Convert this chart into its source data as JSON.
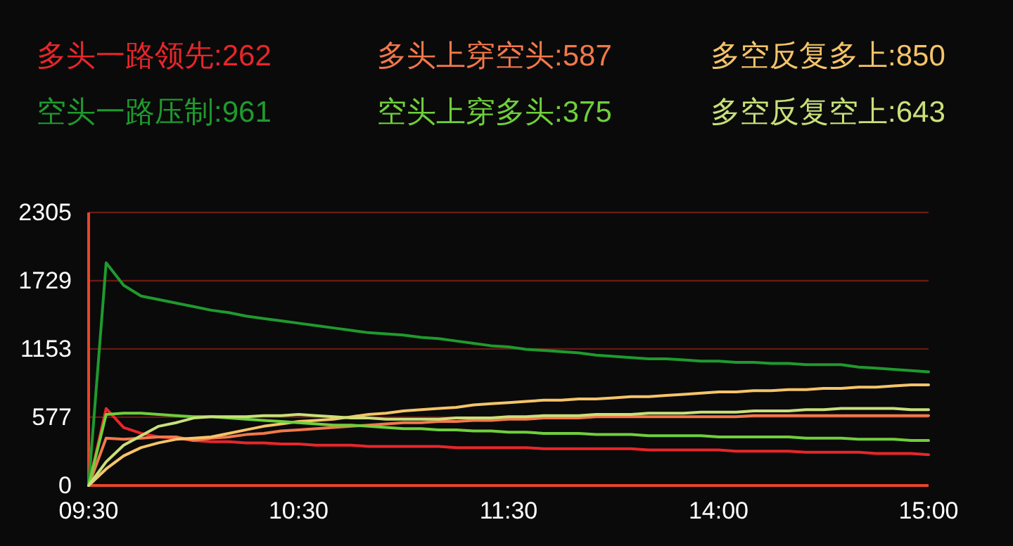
{
  "chart_data": {
    "type": "line",
    "legend": "top",
    "grid": "y",
    "ylim": [
      0,
      2305
    ],
    "yticks": [
      0,
      577,
      1153,
      1729,
      2305
    ],
    "categories": [
      "09:30",
      null,
      null,
      null,
      null,
      null,
      null,
      null,
      null,
      null,
      null,
      null,
      "10:30",
      null,
      null,
      null,
      null,
      null,
      null,
      null,
      null,
      null,
      null,
      null,
      "11:30",
      null,
      null,
      null,
      null,
      null,
      null,
      null,
      null,
      null,
      null,
      null,
      "14:00",
      null,
      null,
      null,
      null,
      null,
      null,
      null,
      null,
      null,
      null,
      null,
      "15:00"
    ],
    "series": [
      {
        "name": "多头一路领先:262",
        "color": "#e8262a",
        "values": [
          0,
          650,
          490,
          440,
          410,
          400,
          380,
          370,
          370,
          360,
          360,
          350,
          350,
          340,
          340,
          340,
          330,
          330,
          330,
          330,
          330,
          320,
          320,
          320,
          320,
          320,
          310,
          310,
          310,
          310,
          310,
          310,
          300,
          300,
          300,
          300,
          300,
          290,
          290,
          290,
          290,
          280,
          280,
          280,
          280,
          270,
          270,
          270,
          260
        ]
      },
      {
        "name": "多头上穿空头:587",
        "color": "#f2784b",
        "values": [
          0,
          400,
          390,
          400,
          410,
          410,
          380,
          400,
          410,
          430,
          440,
          460,
          470,
          480,
          490,
          500,
          510,
          520,
          530,
          530,
          540,
          540,
          550,
          550,
          560,
          560,
          570,
          570,
          570,
          580,
          580,
          580,
          580,
          580,
          580,
          580,
          580,
          580,
          590,
          590,
          590,
          590,
          590,
          590,
          590,
          590,
          590,
          590,
          590
        ]
      },
      {
        "name": "多空反复多上:850",
        "color": "#f5c46a",
        "values": [
          0,
          140,
          250,
          320,
          360,
          390,
          400,
          410,
          440,
          470,
          500,
          520,
          540,
          550,
          560,
          580,
          600,
          610,
          630,
          640,
          650,
          660,
          680,
          690,
          700,
          710,
          720,
          720,
          730,
          730,
          740,
          750,
          750,
          760,
          770,
          780,
          790,
          790,
          800,
          800,
          810,
          810,
          820,
          820,
          830,
          830,
          840,
          850,
          850
        ]
      },
      {
        "name": "空头一路压制:961",
        "color": "#1f9a2e",
        "values": [
          0,
          1880,
          1690,
          1600,
          1570,
          1540,
          1510,
          1480,
          1460,
          1430,
          1410,
          1390,
          1370,
          1350,
          1330,
          1310,
          1290,
          1280,
          1270,
          1250,
          1240,
          1220,
          1200,
          1180,
          1170,
          1150,
          1140,
          1130,
          1120,
          1100,
          1090,
          1080,
          1070,
          1070,
          1060,
          1050,
          1050,
          1040,
          1040,
          1030,
          1030,
          1020,
          1020,
          1020,
          1000,
          990,
          980,
          970,
          960
        ]
      },
      {
        "name": "空头上穿多头:375",
        "color": "#6fcf3c",
        "values": [
          0,
          600,
          610,
          610,
          600,
          590,
          580,
          580,
          570,
          560,
          550,
          540,
          530,
          520,
          510,
          510,
          500,
          490,
          480,
          480,
          470,
          470,
          460,
          460,
          450,
          450,
          440,
          440,
          440,
          430,
          430,
          430,
          420,
          420,
          420,
          420,
          410,
          410,
          410,
          410,
          410,
          400,
          400,
          400,
          390,
          390,
          390,
          380,
          380
        ]
      },
      {
        "name": "多空反复空上:643",
        "color": "#c9e07a",
        "values": [
          0,
          200,
          340,
          420,
          500,
          530,
          570,
          580,
          580,
          580,
          590,
          590,
          600,
          590,
          580,
          570,
          570,
          560,
          560,
          560,
          560,
          570,
          570,
          570,
          580,
          580,
          590,
          590,
          590,
          600,
          600,
          600,
          610,
          610,
          610,
          620,
          620,
          620,
          630,
          630,
          630,
          640,
          640,
          650,
          650,
          650,
          650,
          640,
          640
        ]
      }
    ]
  }
}
